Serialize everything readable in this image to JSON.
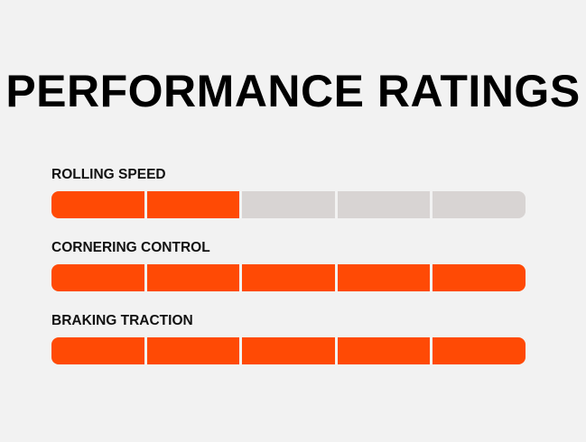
{
  "title": "PERFORMANCE RATINGS",
  "colors": {
    "filled": "#ff4a05",
    "empty": "#d8d4d3"
  },
  "ratings": [
    {
      "label": "ROLLING SPEED",
      "value": 2,
      "max": 5
    },
    {
      "label": "CORNERING CONTROL",
      "value": 5,
      "max": 5
    },
    {
      "label": "BRAKING TRACTION",
      "value": 5,
      "max": 5
    }
  ]
}
